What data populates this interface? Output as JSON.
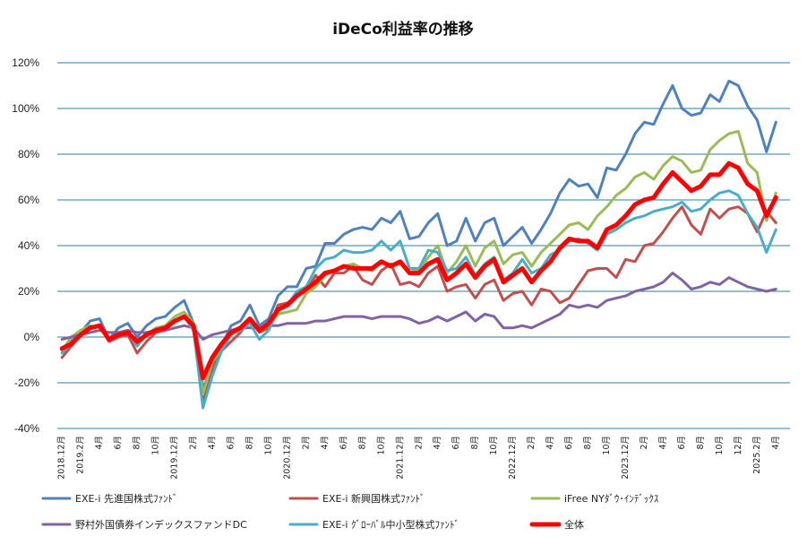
{
  "chart_data": {
    "type": "line",
    "title": "iDeCo利益率の推移",
    "xlabel": "",
    "ylabel": "",
    "ylim": [
      -40,
      120
    ],
    "yticks": [
      -40,
      -20,
      0,
      20,
      40,
      60,
      80,
      100,
      120
    ],
    "ytick_labels": [
      "-40%",
      "-20%",
      "0%",
      "20%",
      "40%",
      "60%",
      "80%",
      "100%",
      "120%"
    ],
    "grid": true,
    "legend_position": "bottom",
    "x_count": 78,
    "x_tick_labels": [
      {
        "i": 0,
        "label": "2018.12月"
      },
      {
        "i": 2,
        "label": "2019.2月"
      },
      {
        "i": 4,
        "label": "4月"
      },
      {
        "i": 6,
        "label": "6月"
      },
      {
        "i": 8,
        "label": "8月"
      },
      {
        "i": 10,
        "label": "10月"
      },
      {
        "i": 12,
        "label": "2019.12月"
      },
      {
        "i": 14,
        "label": "2月"
      },
      {
        "i": 16,
        "label": "4月"
      },
      {
        "i": 18,
        "label": "6月"
      },
      {
        "i": 20,
        "label": "8月"
      },
      {
        "i": 22,
        "label": "10月"
      },
      {
        "i": 24,
        "label": "2020.12月"
      },
      {
        "i": 26,
        "label": "2月"
      },
      {
        "i": 28,
        "label": "4月"
      },
      {
        "i": 30,
        "label": "6月"
      },
      {
        "i": 32,
        "label": "8月"
      },
      {
        "i": 34,
        "label": "10月"
      },
      {
        "i": 36,
        "label": "2021.12月"
      },
      {
        "i": 38,
        "label": "2月"
      },
      {
        "i": 40,
        "label": "4月"
      },
      {
        "i": 42,
        "label": "6月"
      },
      {
        "i": 44,
        "label": "8月"
      },
      {
        "i": 46,
        "label": "10月"
      },
      {
        "i": 48,
        "label": "2022.12月"
      },
      {
        "i": 50,
        "label": "2月"
      },
      {
        "i": 52,
        "label": "4月"
      },
      {
        "i": 54,
        "label": "6月"
      },
      {
        "i": 56,
        "label": "8月"
      },
      {
        "i": 58,
        "label": "10月"
      },
      {
        "i": 60,
        "label": "2023.12月"
      },
      {
        "i": 62,
        "label": "2月"
      },
      {
        "i": 64,
        "label": "4月"
      },
      {
        "i": 66,
        "label": "6月"
      },
      {
        "i": 68,
        "label": "8月"
      },
      {
        "i": 70,
        "label": "10月"
      },
      {
        "i": 72,
        "label": "12月"
      },
      {
        "i": 74,
        "label": "2025.2月"
      },
      {
        "i": 76,
        "label": "4月"
      }
    ],
    "series": [
      {
        "name": "EXE-i 先進国株式ﾌｧﾝﾄﾞ",
        "color": "#4f81bd",
        "width": 3,
        "values": [
          -5,
          -2,
          2,
          7,
          8,
          -1,
          4,
          6,
          0,
          5,
          8,
          9,
          13,
          16,
          6,
          -23,
          -12,
          -4,
          5,
          7,
          14,
          5,
          8,
          18,
          22,
          22,
          30,
          31,
          41,
          41,
          45,
          47,
          48,
          47,
          52,
          50,
          55,
          43,
          44,
          50,
          54,
          40,
          42,
          52,
          42,
          50,
          52,
          40,
          44,
          48,
          41,
          47,
          54,
          63,
          69,
          66,
          67,
          61,
          74,
          73,
          80,
          89,
          94,
          93,
          102,
          110,
          100,
          97,
          98,
          106,
          103,
          112,
          110,
          101,
          95,
          81,
          94
        ]
      },
      {
        "name": "EXE-i 新興国株式ﾌｧﾝﾄﾞ",
        "color": "#c0504d",
        "width": 3,
        "values": [
          -9,
          -4,
          1,
          4,
          5,
          -2,
          0,
          1,
          -7,
          -2,
          2,
          3,
          7,
          9,
          3,
          -28,
          -14,
          -6,
          -2,
          2,
          8,
          2,
          4,
          14,
          15,
          18,
          20,
          27,
          22,
          28,
          28,
          31,
          25,
          23,
          29,
          32,
          23,
          24,
          22,
          28,
          31,
          20,
          22,
          23,
          17,
          23,
          25,
          16,
          19,
          20,
          14,
          21,
          20,
          15,
          17,
          23,
          29,
          30,
          30,
          26,
          34,
          33,
          40,
          41,
          46,
          52,
          57,
          49,
          45,
          56,
          52,
          56,
          57,
          54,
          46,
          55,
          50
        ]
      },
      {
        "name": "iFree NYﾀﾞｳ･ｲﾝﾃﾞｯｸｽ",
        "color": "#9bbb59",
        "width": 3,
        "values": [
          -6,
          0,
          3,
          5,
          4,
          -1,
          1,
          2,
          -3,
          1,
          4,
          5,
          9,
          11,
          6,
          -25,
          -11,
          -5,
          1,
          3,
          8,
          3,
          5,
          10,
          11,
          12,
          19,
          22,
          27,
          29,
          31,
          32,
          30,
          29,
          33,
          31,
          32,
          30,
          29,
          35,
          40,
          28,
          33,
          40,
          31,
          39,
          42,
          32,
          36,
          37,
          31,
          37,
          41,
          45,
          49,
          50,
          47,
          53,
          57,
          62,
          65,
          70,
          72,
          69,
          75,
          79,
          77,
          72,
          73,
          82,
          86,
          89,
          90,
          76,
          72,
          51,
          63
        ]
      },
      {
        "name": "野村外国債券インデックスファンドDC",
        "color": "#8064a2",
        "width": 3,
        "values": [
          -1,
          0,
          1,
          2,
          3,
          2,
          2,
          3,
          2,
          2,
          3,
          3,
          4,
          5,
          4,
          -1,
          1,
          2,
          3,
          4,
          4,
          4,
          5,
          5,
          6,
          6,
          6,
          7,
          7,
          8,
          9,
          9,
          9,
          8,
          9,
          9,
          9,
          8,
          6,
          7,
          9,
          7,
          9,
          11,
          7,
          10,
          9,
          4,
          4,
          5,
          4,
          6,
          8,
          10,
          14,
          13,
          14,
          13,
          16,
          17,
          18,
          20,
          21,
          22,
          24,
          28,
          25,
          21,
          22,
          24,
          23,
          26,
          24,
          22,
          21,
          20,
          21
        ]
      },
      {
        "name": "EXE-i ｸﾞﾛｰﾊﾞﾙ中小型株式ﾌｧﾝﾄﾞ",
        "color": "#4bacc6",
        "width": 3,
        "values": [
          -7,
          -3,
          1,
          4,
          5,
          -1,
          1,
          2,
          -4,
          1,
          3,
          4,
          7,
          9,
          3,
          -31,
          -17,
          -6,
          1,
          3,
          6,
          -1,
          3,
          12,
          14,
          20,
          22,
          30,
          34,
          35,
          38,
          37,
          37,
          38,
          42,
          38,
          42,
          30,
          30,
          38,
          37,
          29,
          30,
          35,
          27,
          32,
          35,
          25,
          28,
          34,
          28,
          30,
          36,
          38,
          42,
          43,
          41,
          38,
          45,
          47,
          50,
          52,
          53,
          55,
          56,
          57,
          59,
          55,
          56,
          60,
          63,
          64,
          62,
          54,
          48,
          37,
          47
        ]
      },
      {
        "name": "全体",
        "color": "#ff0000",
        "width": 5,
        "values": [
          -5,
          -3,
          1,
          4,
          5,
          -1,
          1,
          2,
          -2,
          1,
          3,
          4,
          7,
          9,
          5,
          -18,
          -9,
          -3,
          2,
          4,
          8,
          3,
          6,
          12,
          14,
          18,
          21,
          24,
          28,
          29,
          31,
          30,
          30,
          30,
          33,
          31,
          33,
          28,
          28,
          32,
          34,
          25,
          28,
          32,
          26,
          31,
          34,
          24,
          27,
          30,
          24,
          29,
          33,
          39,
          43,
          42,
          42,
          39,
          47,
          49,
          53,
          58,
          60,
          61,
          67,
          72,
          68,
          64,
          66,
          71,
          71,
          76,
          74,
          67,
          64,
          53,
          61
        ]
      }
    ]
  }
}
